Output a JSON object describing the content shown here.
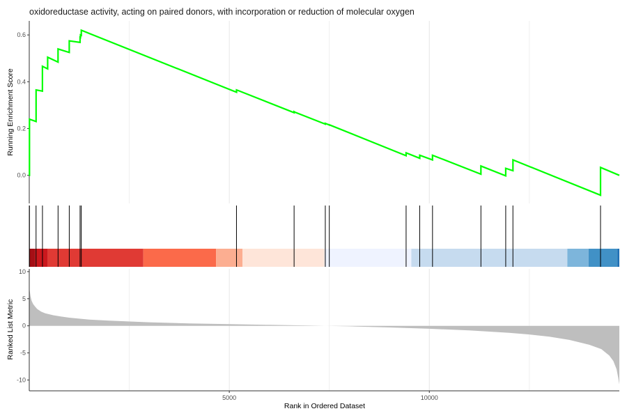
{
  "chart_data": {
    "type": "line",
    "title": "oxidoreductase activity, acting on paired donors, with incorporation or reduction of molecular oxygen",
    "xlabel": "Rank in Ordered Dataset",
    "x_ticks": [
      5000,
      10000
    ],
    "x_range": [
      0,
      14750
    ],
    "grid": "vertical",
    "panels": {
      "enrichment": {
        "ylabel": "Running Enrichment Score",
        "y_ticks": [
          0.0,
          0.2,
          0.4,
          0.6
        ],
        "ylim": [
          -0.12,
          0.66
        ],
        "line_color": "#00ff00",
        "series": [
          {
            "x": [
              0,
              5,
              5,
              170,
              170,
              330,
              330,
              460,
              460,
              720,
              720,
              1000,
              1000,
              1270,
              1270,
              1280,
              1280,
              1300,
              1300,
              5180,
              5180,
              5230,
              6620,
              6620,
              6640,
              7400,
              7400,
              7430,
              7500,
              7500,
              7530,
              9420,
              9420,
              9760,
              9760,
              10080,
              10080,
              11290,
              11290,
              11910,
              11910,
              12090,
              12090,
              14280,
              14280,
              14750
            ],
            "y": [
              0.0,
              0.0,
              0.24,
              0.23,
              0.365,
              0.36,
              0.466,
              0.455,
              0.505,
              0.484,
              0.54,
              0.525,
              0.575,
              0.568,
              0.59,
              0.589,
              0.6,
              0.598,
              0.62,
              0.355,
              0.365,
              0.362,
              0.268,
              0.272,
              0.27,
              0.219,
              0.222,
              0.22,
              0.215,
              0.216,
              0.214,
              0.084,
              0.096,
              0.073,
              0.086,
              0.066,
              0.086,
              0.005,
              0.04,
              -0.002,
              0.03,
              0.02,
              0.066,
              -0.085,
              0.034,
              0.0
            ]
          }
        ]
      },
      "hits": {
        "positions": [
          5,
          170,
          330,
          720,
          1000,
          1270,
          1300,
          5180,
          6620,
          7400,
          7500,
          9420,
          9760,
          10080,
          11290,
          11910,
          12090,
          14280
        ]
      },
      "rank_bands": [
        {
          "start": 0,
          "end": 150,
          "color": "#a50f15"
        },
        {
          "start": 150,
          "end": 460,
          "color": "#cb181d"
        },
        {
          "start": 460,
          "end": 2850,
          "color": "#e03a34"
        },
        {
          "start": 2850,
          "end": 4670,
          "color": "#fb6a4a"
        },
        {
          "start": 4670,
          "end": 5330,
          "color": "#fcae91"
        },
        {
          "start": 5330,
          "end": 7380,
          "color": "#fee5d9"
        },
        {
          "start": 7380,
          "end": 9550,
          "color": "#eff3ff"
        },
        {
          "start": 9550,
          "end": 13450,
          "color": "#c6dbef"
        },
        {
          "start": 13450,
          "end": 13980,
          "color": "#7db5db"
        },
        {
          "start": 13980,
          "end": 14700,
          "color": "#4191c6"
        },
        {
          "start": 14700,
          "end": 14750,
          "color": "#2171b5"
        }
      ],
      "ranked_metric": {
        "ylabel": "Ranked List Metric",
        "y_ticks": [
          10,
          5,
          0,
          -5,
          -10
        ],
        "ylim": [
          -12,
          10.5
        ],
        "fill_color": "#bebebe",
        "curve": {
          "x": [
            0,
            10,
            30,
            60,
            100,
            150,
            200,
            300,
            400,
            600,
            800,
            1000,
            1500,
            2000,
            3000,
            4000,
            5000,
            6000,
            7000,
            7400,
            8000,
            9000,
            10000,
            11000,
            12000,
            12500,
            13000,
            13500,
            14000,
            14300,
            14500,
            14600,
            14680,
            14720,
            14750
          ],
          "y": [
            7.5,
            6.5,
            5.5,
            4.6,
            4.0,
            3.5,
            3.1,
            2.6,
            2.3,
            1.95,
            1.7,
            1.5,
            1.15,
            0.95,
            0.65,
            0.45,
            0.3,
            0.18,
            0.06,
            0.0,
            -0.1,
            -0.3,
            -0.55,
            -0.85,
            -1.3,
            -1.6,
            -2.0,
            -2.6,
            -3.5,
            -4.3,
            -5.5,
            -6.5,
            -8.0,
            -9.5,
            -10.8
          ]
        }
      }
    }
  }
}
